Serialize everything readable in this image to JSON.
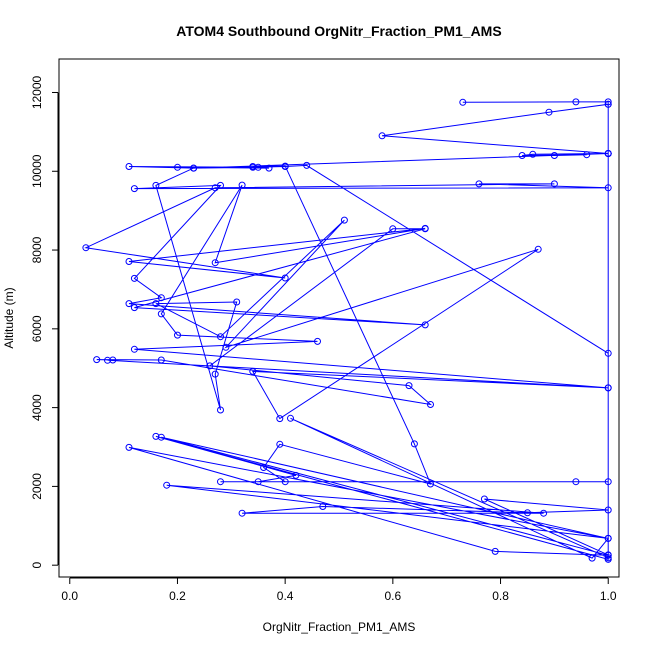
{
  "chart_data": {
    "type": "line",
    "title": "ATOM4 Southbound OrgNitr_Fraction_PM1_AMS",
    "xlabel": "OrgNitr_Fraction_PM1_AMS",
    "ylabel": "Altitude (m)",
    "xlim": [
      -0.02,
      1.02
    ],
    "ylim": [
      -300,
      12850
    ],
    "x_ticks": [
      0.0,
      0.2,
      0.4,
      0.6,
      0.8,
      1.0
    ],
    "x_tick_labels": [
      "0.0",
      "0.2",
      "0.4",
      "0.6",
      "0.8",
      "1.0"
    ],
    "y_ticks": [
      0,
      2000,
      4000,
      6000,
      8000,
      10000,
      12000
    ],
    "y_tick_labels": [
      "0",
      "2000",
      "4000",
      "6000",
      "8000",
      "10000",
      "12000"
    ],
    "grid": false,
    "line_color": "#0000ff",
    "marker": "open-circle",
    "series": [
      {
        "points": [
          [
            0.73,
            11750
          ],
          [
            0.94,
            11760
          ],
          [
            1.0,
            11760
          ],
          [
            1.0,
            11700
          ],
          [
            0.89,
            11500
          ],
          [
            0.58,
            10900
          ],
          [
            1.0,
            10450
          ],
          [
            1.0,
            10450
          ],
          [
            0.9,
            10400
          ],
          [
            0.96,
            10420
          ],
          [
            0.84,
            10400
          ],
          [
            0.86,
            10430
          ],
          [
            1.0,
            10450
          ],
          [
            1.0,
            10450
          ],
          [
            0.23,
            10080
          ],
          [
            0.11,
            10120
          ],
          [
            0.34,
            10100
          ],
          [
            0.4,
            10120
          ],
          [
            0.44,
            10150
          ],
          [
            1.0,
            5380
          ],
          [
            1.0,
            4500
          ],
          [
            0.07,
            5200
          ],
          [
            0.08,
            5210
          ],
          [
            0.05,
            5220
          ],
          [
            0.17,
            5210
          ],
          [
            0.67,
            4080
          ],
          [
            0.63,
            4560
          ],
          [
            0.26,
            5060
          ],
          [
            0.6,
            8540
          ],
          [
            0.66,
            8540
          ],
          [
            0.12,
            6540
          ],
          [
            0.66,
            6100
          ],
          [
            0.11,
            6640
          ],
          [
            0.17,
            6790
          ],
          [
            0.12,
            7280
          ],
          [
            0.28,
            9640
          ],
          [
            0.12,
            9560
          ],
          [
            1.0,
            9580
          ],
          [
            0.76,
            9680
          ],
          [
            0.9,
            9680
          ],
          [
            0.27,
            9580
          ],
          [
            0.03,
            8060
          ],
          [
            0.4,
            7290
          ],
          [
            0.11,
            7710
          ],
          [
            0.66,
            8550
          ],
          [
            0.27,
            7680
          ],
          [
            0.32,
            9650
          ],
          [
            0.17,
            6380
          ],
          [
            0.2,
            5840
          ],
          [
            0.46,
            5680
          ],
          [
            0.12,
            5480
          ],
          [
            1.0,
            4500
          ],
          [
            0.34,
            4920
          ],
          [
            0.39,
            3720
          ],
          [
            0.87,
            8020
          ],
          [
            0.29,
            5530
          ],
          [
            0.51,
            8760
          ],
          [
            0.28,
            5800
          ],
          [
            0.16,
            6640
          ],
          [
            0.31,
            6680
          ],
          [
            0.27,
            4850
          ],
          [
            0.28,
            3940
          ],
          [
            0.16,
            9640
          ],
          [
            0.23,
            10080
          ],
          [
            0.35,
            10100
          ],
          [
            0.2,
            10100
          ],
          [
            0.37,
            10080
          ],
          [
            0.34,
            10120
          ],
          [
            0.4,
            10130
          ],
          [
            0.64,
            3080
          ],
          [
            0.67,
            2060
          ],
          [
            0.39,
            3070
          ],
          [
            0.36,
            2480
          ],
          [
            0.4,
            2120
          ],
          [
            0.28,
            2120
          ],
          [
            0.94,
            2120
          ],
          [
            1.0,
            2120
          ],
          [
            0.35,
            2120
          ],
          [
            0.42,
            2280
          ],
          [
            0.16,
            3270
          ],
          [
            1.0,
            150
          ],
          [
            1.0,
            260
          ],
          [
            0.77,
            1680
          ],
          [
            1.0,
            1400
          ],
          [
            0.85,
            1330
          ],
          [
            0.47,
            1490
          ],
          [
            0.32,
            1320
          ],
          [
            0.88,
            1320
          ],
          [
            0.18,
            2030
          ],
          [
            1.0,
            680
          ],
          [
            0.11,
            2990
          ],
          [
            0.79,
            350
          ],
          [
            1.0,
            250
          ],
          [
            0.17,
            3250
          ],
          [
            1.0,
            680
          ],
          [
            0.97,
            180
          ],
          [
            0.41,
            3730
          ],
          [
            1.0,
            190
          ],
          [
            1.0,
            11700
          ],
          [
            1.0,
            150
          ]
        ]
      }
    ]
  }
}
